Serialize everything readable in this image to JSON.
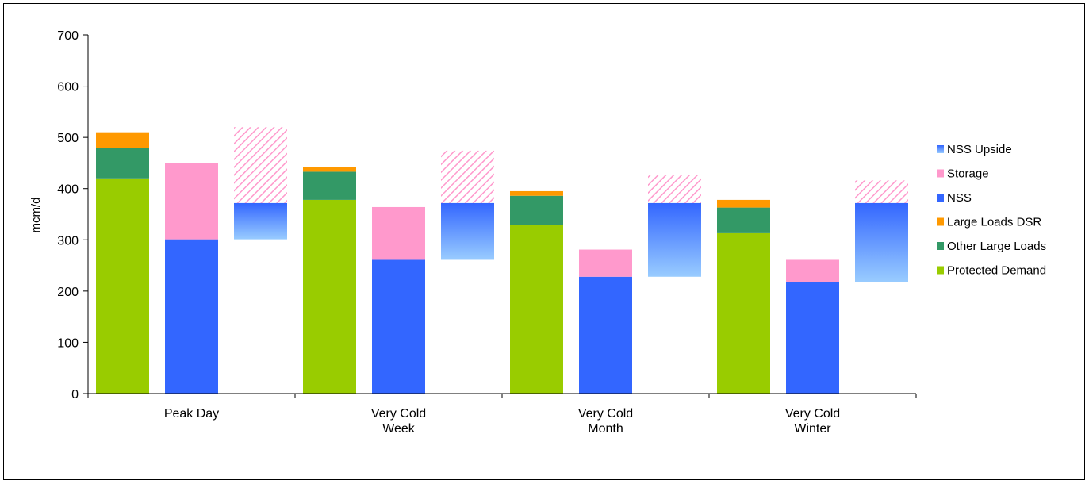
{
  "chart_data": {
    "type": "bar",
    "title": "",
    "xlabel": "",
    "ylabel": "mcm/d",
    "ylim": [
      0,
      700
    ],
    "yticks": [
      0,
      100,
      200,
      300,
      400,
      500,
      600,
      700
    ],
    "grid": false,
    "legend_position": "right",
    "categories": [
      [
        "Peak Day"
      ],
      [
        "Very Cold",
        "Week"
      ],
      [
        "Very Cold",
        "Month"
      ],
      [
        "Very Cold",
        "Winter"
      ]
    ],
    "groups": [
      {
        "demand": {
          "Protected Demand": 420,
          "Other Large Loads": 60,
          "Large Loads DSR": 30
        },
        "supply": {
          "NSS": 301,
          "Storage": 149
        },
        "range": {
          "NSS Upside Low": 301,
          "NSS Upside High": 372,
          "Hatched Top": 520
        }
      },
      {
        "demand": {
          "Protected Demand": 378,
          "Other Large Loads": 55,
          "Large Loads DSR": 9
        },
        "supply": {
          "NSS": 261,
          "Storage": 103
        },
        "range": {
          "NSS Upside Low": 261,
          "NSS Upside High": 372,
          "Hatched Top": 474
        }
      },
      {
        "demand": {
          "Protected Demand": 329,
          "Other Large Loads": 57,
          "Large Loads DSR": 9
        },
        "supply": {
          "NSS": 228,
          "Storage": 53
        },
        "range": {
          "NSS Upside Low": 228,
          "NSS Upside High": 372,
          "Hatched Top": 426
        }
      },
      {
        "demand": {
          "Protected Demand": 313,
          "Other Large Loads": 50,
          "Large Loads DSR": 15
        },
        "supply": {
          "NSS": 218,
          "Storage": 43
        },
        "range": {
          "NSS Upside Low": 218,
          "NSS Upside High": 372,
          "Hatched Top": 416
        }
      }
    ],
    "legend": [
      {
        "name": "NSS Upside",
        "swatch": "gradient"
      },
      {
        "name": "Storage",
        "color": "#FF99CC"
      },
      {
        "name": "NSS",
        "color": "#3366FF"
      },
      {
        "name": "Large Loads DSR",
        "color": "#FF9900"
      },
      {
        "name": "Other Large Loads",
        "color": "#339966"
      },
      {
        "name": "Protected Demand",
        "color": "#99CC00"
      }
    ],
    "colors": {
      "Protected Demand": "#99CC00",
      "Other Large Loads": "#339966",
      "Large Loads DSR": "#FF9900",
      "NSS": "#3366FF",
      "Storage": "#FF99CC",
      "NSS Upside Top": "#3366FF",
      "NSS Upside Bottom": "#99CCFF",
      "Hatch": "#FF99CC"
    }
  }
}
